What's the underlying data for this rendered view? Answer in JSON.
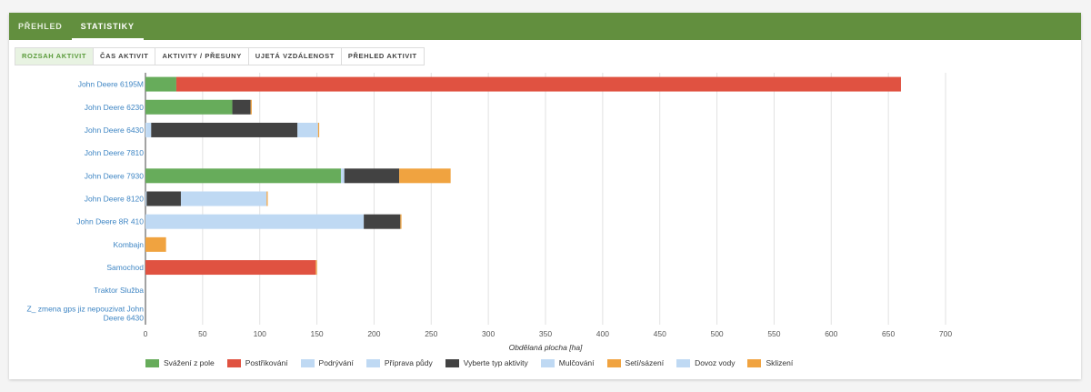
{
  "tabs": [
    {
      "label": "PŘEHLED",
      "active": false
    },
    {
      "label": "STATISTIKY",
      "active": true
    }
  ],
  "subtabs": [
    {
      "label": "ROZSAH AKTIVIT",
      "active": true
    },
    {
      "label": "ČAS AKTIVIT",
      "active": false
    },
    {
      "label": "AKTIVITY / PŘESUNY",
      "active": false
    },
    {
      "label": "UJETÁ VZDÁLENOST",
      "active": false
    },
    {
      "label": "PŘEHLED AKTIVIT",
      "active": false
    }
  ],
  "chart_data": {
    "type": "bar",
    "orientation": "horizontal",
    "stacked": true,
    "title": "",
    "xlabel": "Obdělaná plocha [ha]",
    "ylabel": "",
    "xlim": [
      0,
      700
    ],
    "xticks": [
      0,
      50,
      100,
      150,
      200,
      250,
      300,
      350,
      400,
      450,
      500,
      550,
      600,
      650,
      700
    ],
    "grid": true,
    "legend_position": "bottom",
    "categories": [
      {
        "label": "John Deere 6195M",
        "lines": [
          "John Deere 6195M"
        ]
      },
      {
        "label": "John Deere 6230",
        "lines": [
          "John Deere 6230"
        ]
      },
      {
        "label": "John Deere 6430",
        "lines": [
          "John Deere 6430"
        ]
      },
      {
        "label": "John Deere 7810",
        "lines": [
          "John Deere 7810"
        ]
      },
      {
        "label": "John Deere 7930",
        "lines": [
          "John Deere 7930"
        ]
      },
      {
        "label": "John Deere 8120",
        "lines": [
          "John Deere 8120"
        ]
      },
      {
        "label": "John Deere 8R 410",
        "lines": [
          "John Deere 8R 410"
        ]
      },
      {
        "label": "Kombajn",
        "lines": [
          "Kombajn"
        ]
      },
      {
        "label": "Samochod",
        "lines": [
          "Samochod"
        ]
      },
      {
        "label": "Traktor Služba",
        "lines": [
          "Traktor Služba"
        ]
      },
      {
        "label": "Z_ zmena gps jiz nepouzivat John Deere 6430",
        "lines": [
          "Z_ zmena gps jiz nepouzivat John",
          "Deere 6430"
        ]
      }
    ],
    "series": [
      {
        "name": "Svážení z pole",
        "color": "#67ac5b",
        "values": [
          27,
          76,
          0,
          0,
          171,
          0,
          0,
          0,
          0,
          0,
          0
        ]
      },
      {
        "name": "Postřikování",
        "color": "#e05241",
        "values": [
          634,
          0,
          0,
          0,
          0,
          0,
          0,
          0,
          149,
          0,
          0
        ]
      },
      {
        "name": "Podrývání",
        "color": "#bfd9f3",
        "values": [
          0,
          0,
          1,
          0,
          0,
          0,
          0,
          0,
          0,
          0,
          0
        ]
      },
      {
        "name": "Příprava půdy",
        "color": "#bfd9f3",
        "values": [
          0,
          0,
          4,
          0,
          3,
          1,
          191,
          0,
          0,
          0,
          0
        ]
      },
      {
        "name": "Vyberte typ aktivity",
        "color": "#424242",
        "values": [
          0,
          16,
          128,
          0,
          48,
          30,
          32,
          0,
          0,
          0,
          0
        ]
      },
      {
        "name": "Mulčování",
        "color": "#bfd9f3",
        "values": [
          0,
          0,
          18,
          0,
          0,
          75,
          0,
          0,
          0,
          0,
          0
        ]
      },
      {
        "name": "Setí/sázení",
        "color": "#f0a340",
        "values": [
          0,
          1,
          1,
          0,
          45,
          1,
          1,
          0,
          1,
          0,
          0
        ]
      },
      {
        "name": "Dovoz vody",
        "color": "#bfd9f3",
        "values": [
          0,
          0,
          0,
          0,
          0,
          0,
          0,
          0,
          0,
          0,
          0
        ]
      },
      {
        "name": "Sklizení",
        "color": "#f0a340",
        "values": [
          0,
          0,
          0,
          0,
          0,
          0,
          0,
          18,
          0,
          0,
          0
        ]
      }
    ]
  }
}
